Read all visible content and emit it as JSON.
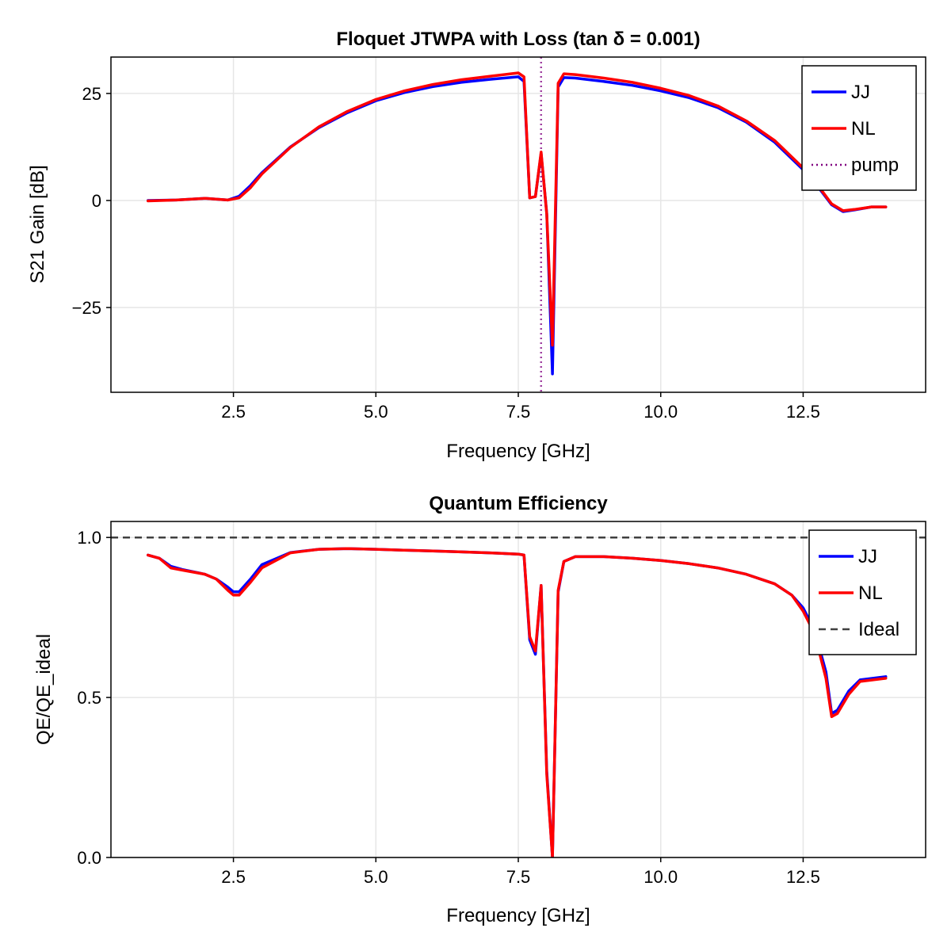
{
  "chart_data": [
    {
      "type": "line",
      "title": "Floquet JTWPA with Loss (tan δ = 0.001)",
      "xlabel": "Frequency [GHz]",
      "ylabel": "S21 Gain [dB]",
      "xlim": [
        0.35,
        14.65
      ],
      "ylim": [
        -44.8,
        33.5
      ],
      "xticks": [
        2.5,
        5.0,
        7.5,
        10.0,
        12.5
      ],
      "xtick_labels": [
        "2.5",
        "5.0",
        "7.5",
        "10.0",
        "12.5"
      ],
      "yticks": [
        -25,
        0,
        25
      ],
      "ytick_labels": [
        "−25",
        "0",
        "25"
      ],
      "grid": true,
      "legend_position": "top-right",
      "series": [
        {
          "name": "JJ",
          "color": "#0000ff",
          "style": "solid",
          "x": [
            1.0,
            1.5,
            2.0,
            2.4,
            2.6,
            2.8,
            3.0,
            3.5,
            4.0,
            4.5,
            5.0,
            5.5,
            6.0,
            6.5,
            7.0,
            7.5,
            7.6,
            7.7,
            7.8,
            7.9,
            8.0,
            8.1,
            8.2,
            8.3,
            8.5,
            9.0,
            9.5,
            10.0,
            10.5,
            11.0,
            11.5,
            12.0,
            12.5,
            12.8,
            13.0,
            13.2,
            13.4,
            13.7,
            13.95
          ],
          "y": [
            0.0,
            0.1,
            0.5,
            0.1,
            1.0,
            3.5,
            6.5,
            12.5,
            17.0,
            20.5,
            23.3,
            25.2,
            26.6,
            27.6,
            28.3,
            28.9,
            27.8,
            0.6,
            0.9,
            11.0,
            -3.0,
            -40.5,
            26.5,
            28.7,
            28.6,
            27.8,
            26.9,
            25.6,
            24.0,
            21.7,
            18.3,
            13.6,
            7.2,
            2.5,
            -1.0,
            -2.6,
            -2.2,
            -1.5,
            -1.5
          ]
        },
        {
          "name": "NL",
          "color": "#ff0000",
          "style": "solid",
          "x": [
            1.0,
            1.5,
            2.0,
            2.4,
            2.6,
            2.8,
            3.0,
            3.5,
            4.0,
            4.5,
            5.0,
            5.5,
            6.0,
            6.5,
            7.0,
            7.5,
            7.6,
            7.7,
            7.8,
            7.9,
            8.0,
            8.1,
            8.2,
            8.3,
            8.5,
            9.0,
            9.5,
            10.0,
            10.5,
            11.0,
            11.5,
            12.0,
            12.5,
            12.8,
            13.0,
            13.2,
            13.4,
            13.7,
            13.95
          ],
          "y": [
            -0.1,
            0.1,
            0.5,
            0.1,
            0.6,
            3.0,
            6.2,
            12.4,
            17.2,
            20.8,
            23.6,
            25.6,
            27.1,
            28.2,
            29.0,
            29.8,
            28.9,
            0.6,
            0.9,
            11.3,
            -3.2,
            -33.8,
            27.4,
            29.6,
            29.4,
            28.6,
            27.6,
            26.2,
            24.5,
            22.1,
            18.6,
            14.0,
            7.6,
            2.8,
            -0.8,
            -2.4,
            -2.1,
            -1.5,
            -1.5
          ]
        },
        {
          "name": "pump",
          "color": "#800080",
          "style": "dotted",
          "vertical_line_x": 7.9
        }
      ]
    },
    {
      "type": "line",
      "title": "Quantum Efficiency",
      "xlabel": "Frequency [GHz]",
      "ylabel": "QE/QE_ideal",
      "xlim": [
        0.35,
        14.65
      ],
      "ylim": [
        0.0,
        1.05
      ],
      "xticks": [
        2.5,
        5.0,
        7.5,
        10.0,
        12.5
      ],
      "xtick_labels": [
        "2.5",
        "5.0",
        "7.5",
        "10.0",
        "12.5"
      ],
      "yticks": [
        0.0,
        0.5,
        1.0
      ],
      "ytick_labels": [
        "0.0",
        "0.5",
        "1.0"
      ],
      "grid": true,
      "legend_position": "top-right",
      "series": [
        {
          "name": "JJ",
          "color": "#0000ff",
          "style": "solid",
          "x": [
            1.0,
            1.2,
            1.4,
            1.6,
            2.0,
            2.2,
            2.4,
            2.5,
            2.6,
            2.8,
            3.0,
            3.5,
            4.0,
            4.5,
            5.0,
            5.5,
            6.0,
            6.5,
            7.0,
            7.5,
            7.6,
            7.7,
            7.8,
            7.9,
            8.0,
            8.1,
            8.2,
            8.3,
            8.5,
            9.0,
            9.5,
            10.0,
            10.5,
            11.0,
            11.5,
            12.0,
            12.3,
            12.5,
            12.7,
            12.9,
            13.0,
            13.1,
            13.3,
            13.5,
            13.95
          ],
          "y": [
            0.945,
            0.935,
            0.91,
            0.9,
            0.885,
            0.87,
            0.845,
            0.83,
            0.83,
            0.87,
            0.915,
            0.953,
            0.963,
            0.965,
            0.963,
            0.96,
            0.958,
            0.955,
            0.952,
            0.948,
            0.945,
            0.68,
            0.635,
            0.85,
            0.27,
            0.0,
            0.83,
            0.925,
            0.94,
            0.94,
            0.935,
            0.928,
            0.918,
            0.905,
            0.885,
            0.855,
            0.82,
            0.78,
            0.71,
            0.58,
            0.45,
            0.46,
            0.52,
            0.555,
            0.565
          ]
        },
        {
          "name": "NL",
          "color": "#ff0000",
          "style": "solid",
          "x": [
            1.0,
            1.2,
            1.4,
            1.6,
            2.0,
            2.2,
            2.4,
            2.5,
            2.6,
            2.8,
            3.0,
            3.5,
            4.0,
            4.5,
            5.0,
            5.5,
            6.0,
            6.5,
            7.0,
            7.5,
            7.6,
            7.7,
            7.8,
            7.9,
            8.0,
            8.1,
            8.2,
            8.3,
            8.5,
            9.0,
            9.5,
            10.0,
            10.5,
            11.0,
            11.5,
            12.0,
            12.3,
            12.5,
            12.7,
            12.9,
            13.0,
            13.1,
            13.3,
            13.5,
            13.95
          ],
          "y": [
            0.945,
            0.935,
            0.905,
            0.898,
            0.885,
            0.87,
            0.835,
            0.82,
            0.82,
            0.86,
            0.905,
            0.952,
            0.963,
            0.965,
            0.963,
            0.96,
            0.958,
            0.955,
            0.952,
            0.948,
            0.945,
            0.69,
            0.645,
            0.85,
            0.26,
            0.0,
            0.835,
            0.925,
            0.94,
            0.94,
            0.935,
            0.928,
            0.918,
            0.905,
            0.885,
            0.855,
            0.82,
            0.77,
            0.7,
            0.56,
            0.44,
            0.45,
            0.51,
            0.55,
            0.56
          ]
        },
        {
          "name": "Ideal",
          "color": "#404040",
          "style": "dashed",
          "horizontal_line_y": 1.0
        }
      ]
    }
  ]
}
